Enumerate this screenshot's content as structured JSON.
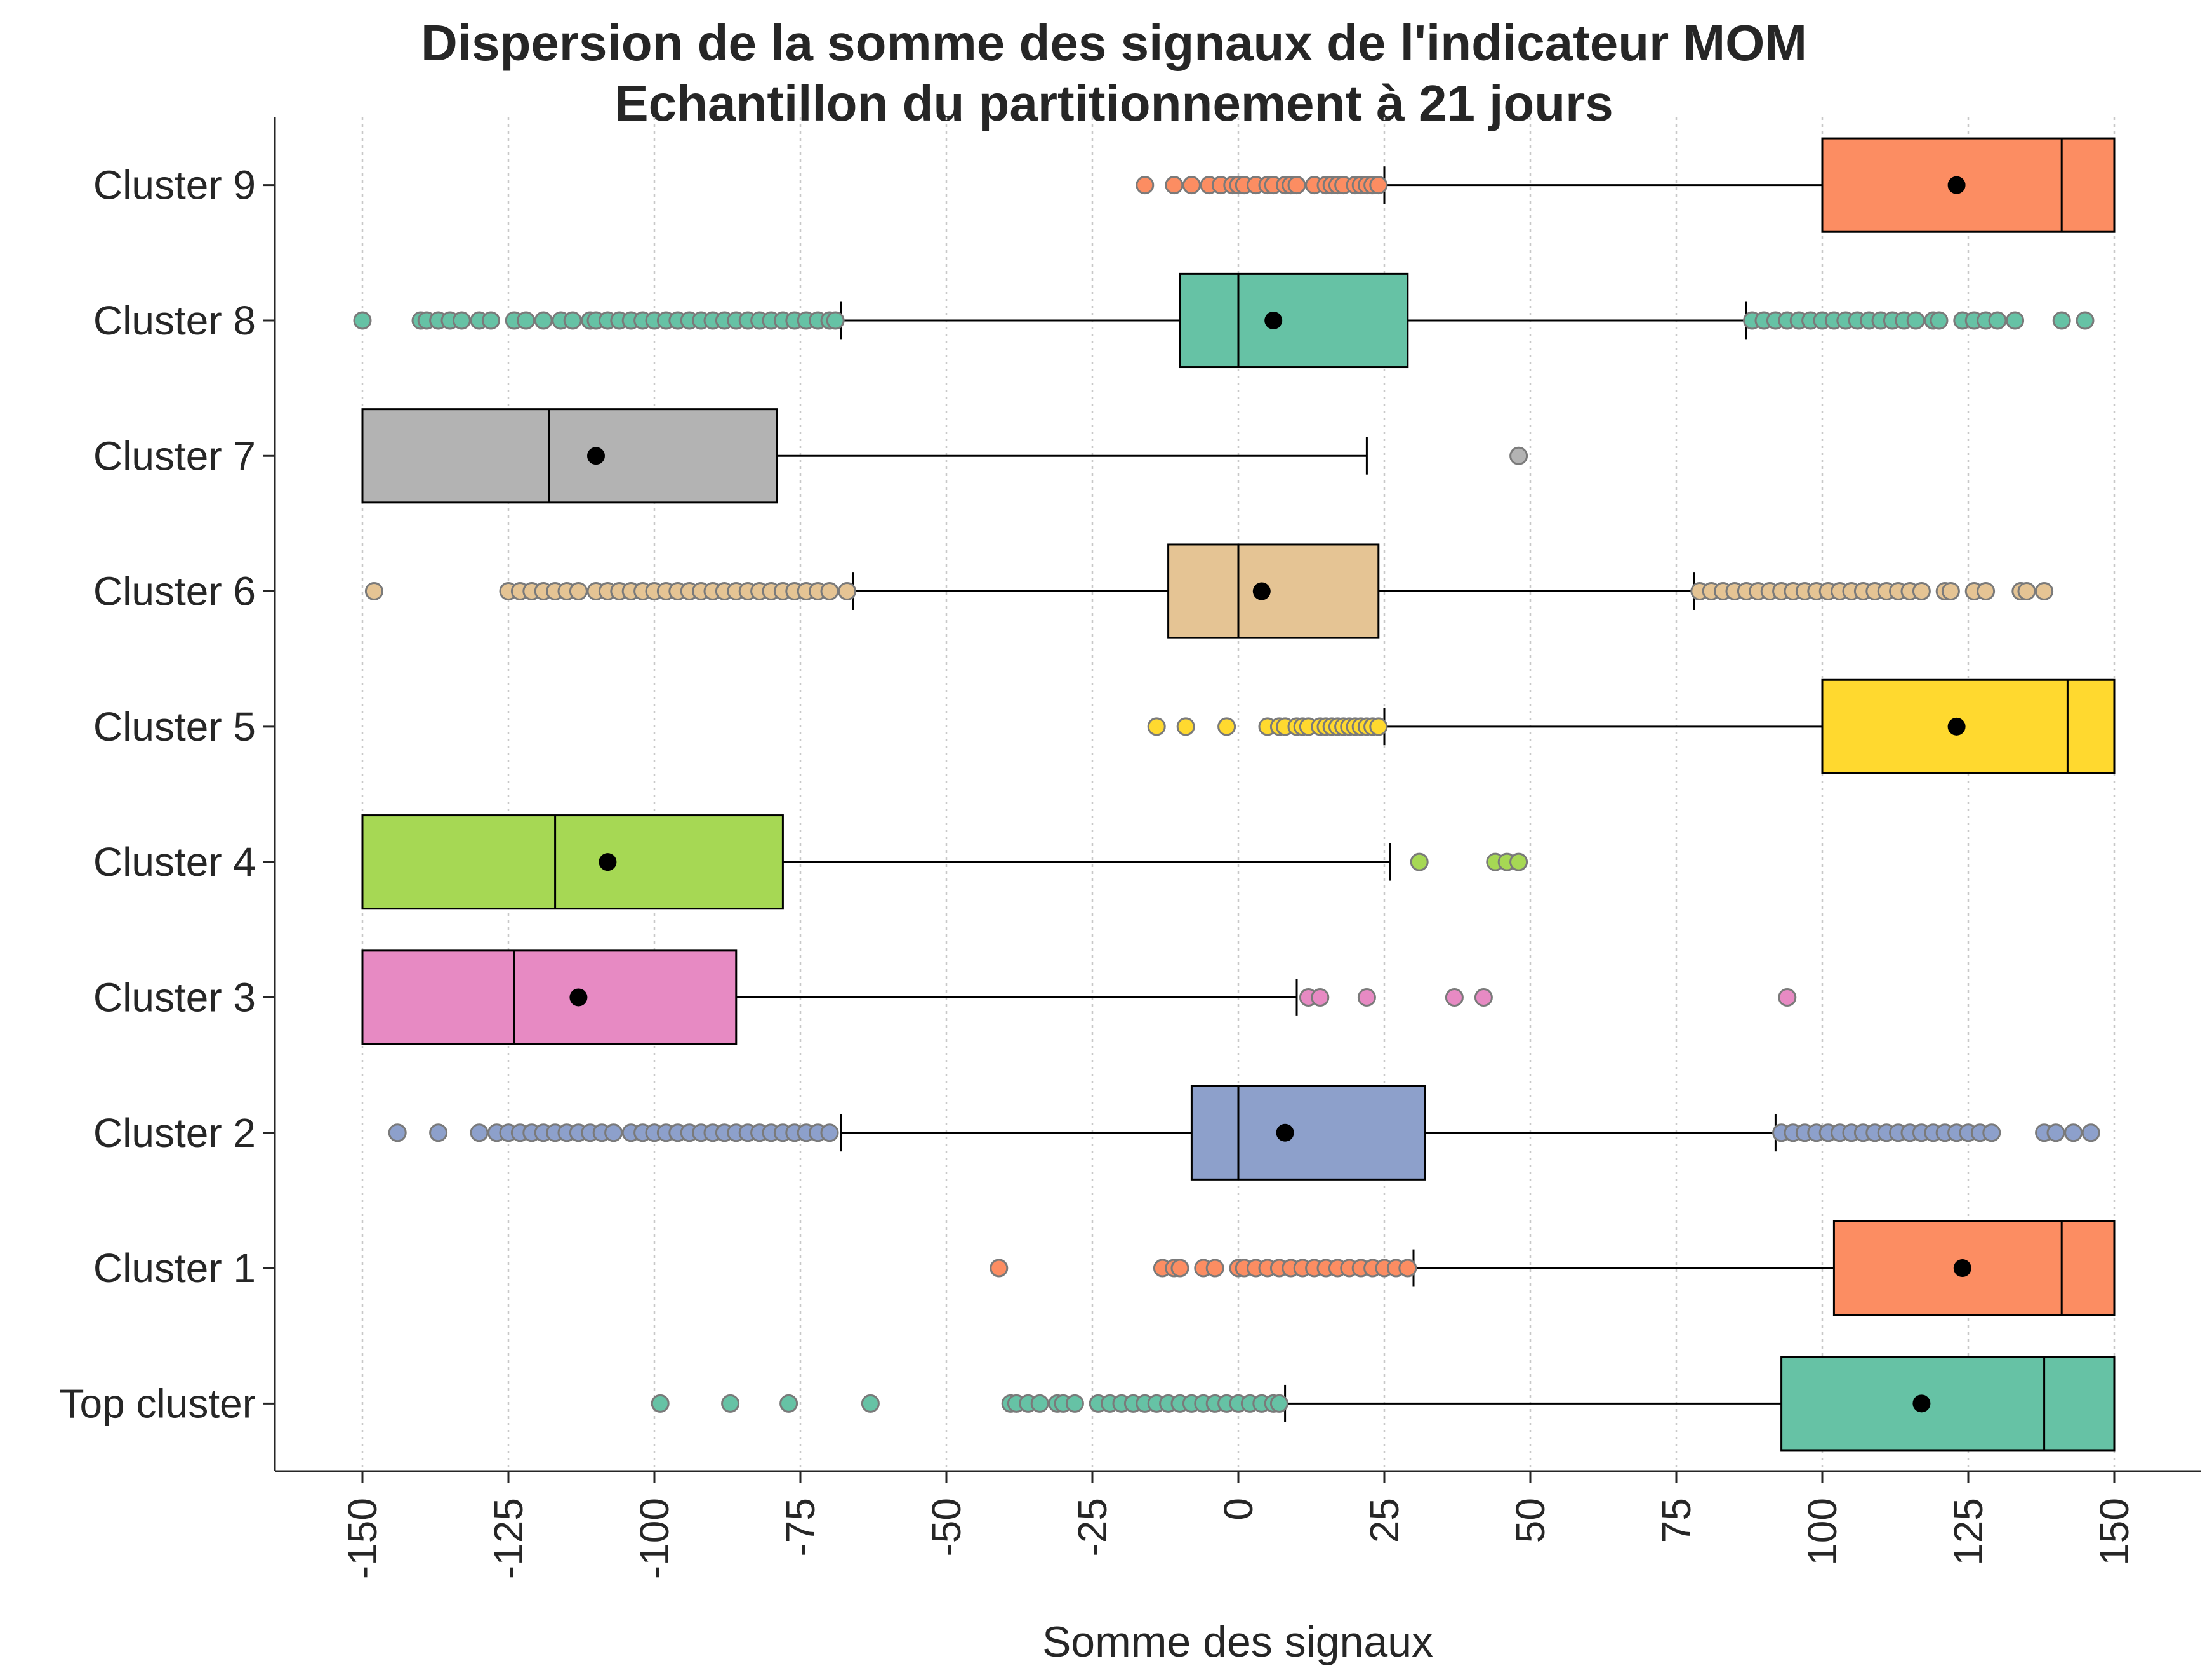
{
  "chart_data": {
    "type": "boxplot",
    "title": "Dispersion de la somme des signaux de l'indicateur MOM",
    "subtitle": "Echantillon du partitionnement à 21 jours",
    "xlabel": "Somme des signaux",
    "ylabel": "",
    "xlim": [
      -165,
      165
    ],
    "x_ticks": [
      -150,
      -125,
      -100,
      -75,
      -50,
      -25,
      0,
      25,
      50,
      75,
      100,
      125,
      150
    ],
    "x_tick_labels": [
      "-150",
      "-125",
      "-100",
      "-75",
      "-50",
      "-25",
      "0",
      "25",
      "50",
      "75",
      "100",
      "125",
      "150"
    ],
    "grid": "vertical dotted",
    "categories": [
      "Cluster 9",
      "Cluster 8",
      "Cluster 7",
      "Cluster 6",
      "Cluster 5",
      "Cluster 4",
      "Cluster 3",
      "Cluster 2",
      "Cluster 1",
      "Top cluster"
    ],
    "series": [
      {
        "label": "Cluster 9",
        "color": "#fc8d62",
        "whisker_low": 25,
        "q1": 100,
        "median": 141,
        "q3": 150,
        "whisker_high": 150,
        "mean": 123,
        "outliers": [
          -16,
          -11,
          -8,
          -5,
          -3,
          -1,
          0,
          1,
          3,
          5,
          6,
          8,
          9,
          10,
          13,
          15,
          16,
          17,
          18,
          20,
          21,
          22,
          23,
          24
        ]
      },
      {
        "label": "Cluster 8",
        "color": "#66c2a5",
        "whisker_low": -68,
        "q1": -10,
        "median": 0,
        "q3": 29,
        "whisker_high": 87,
        "mean": 6,
        "outliers": [
          -150,
          -140,
          -139,
          -137,
          -135,
          -133,
          -130,
          -128,
          -124,
          -122,
          -119,
          -116,
          -114,
          -111,
          -110,
          -108,
          -106,
          -104,
          -102,
          -100,
          -98,
          -96,
          -94,
          -92,
          -90,
          -88,
          -86,
          -84,
          -82,
          -80,
          -78,
          -76,
          -74,
          -72,
          -70,
          -69,
          88,
          90,
          92,
          94,
          96,
          98,
          100,
          102,
          104,
          106,
          108,
          110,
          112,
          114,
          116,
          119,
          120,
          124,
          126,
          128,
          130,
          133,
          141,
          145
        ]
      },
      {
        "label": "Cluster 7",
        "color": "#b3b3b3",
        "whisker_low": -150,
        "q1": -150,
        "median": -118,
        "q3": -79,
        "whisker_high": 22,
        "mean": -110,
        "outliers": [
          48
        ]
      },
      {
        "label": "Cluster 6",
        "color": "#e5c494",
        "whisker_low": -66,
        "q1": -12,
        "median": 0,
        "q3": 24,
        "whisker_high": 78,
        "mean": 4,
        "outliers": [
          -148,
          -125,
          -123,
          -121,
          -119,
          -117,
          -115,
          -113,
          -110,
          -108,
          -106,
          -104,
          -102,
          -100,
          -98,
          -96,
          -94,
          -92,
          -90,
          -88,
          -86,
          -84,
          -82,
          -80,
          -78,
          -76,
          -74,
          -72,
          -70,
          -67,
          79,
          81,
          83,
          85,
          87,
          89,
          91,
          93,
          95,
          97,
          99,
          101,
          103,
          105,
          107,
          109,
          111,
          113,
          115,
          117,
          121,
          122,
          126,
          128,
          134,
          135,
          138
        ]
      },
      {
        "label": "Cluster 5",
        "color": "#ffd92f",
        "whisker_low": 25,
        "q1": 100,
        "median": 142,
        "q3": 150,
        "whisker_high": 150,
        "mean": 123,
        "outliers": [
          -14,
          -9,
          -2,
          5,
          7,
          8,
          10,
          11,
          12,
          14,
          15,
          16,
          17,
          18,
          19,
          20,
          21,
          22,
          23,
          24
        ]
      },
      {
        "label": "Cluster 4",
        "color": "#a6d854",
        "whisker_low": -150,
        "q1": -150,
        "median": -117,
        "q3": -78,
        "whisker_high": 26,
        "mean": -108,
        "outliers": [
          31,
          44,
          46,
          48
        ]
      },
      {
        "label": "Cluster 3",
        "color": "#e78ac3",
        "whisker_low": -150,
        "q1": -150,
        "median": -124,
        "q3": -86,
        "whisker_high": 10,
        "mean": -113,
        "outliers": [
          12,
          14,
          22,
          37,
          42,
          94
        ]
      },
      {
        "label": "Cluster 2",
        "color": "#8da0cb",
        "whisker_low": -68,
        "q1": -8,
        "median": 0,
        "q3": 32,
        "whisker_high": 92,
        "mean": 8,
        "outliers": [
          -144,
          -137,
          -130,
          -127,
          -125,
          -123,
          -121,
          -119,
          -117,
          -115,
          -113,
          -111,
          -109,
          -107,
          -104,
          -102,
          -100,
          -98,
          -96,
          -94,
          -92,
          -90,
          -88,
          -86,
          -84,
          -82,
          -80,
          -78,
          -76,
          -74,
          -72,
          -70,
          93,
          95,
          97,
          99,
          101,
          103,
          105,
          107,
          109,
          111,
          113,
          115,
          117,
          119,
          121,
          123,
          125,
          127,
          129,
          138,
          140,
          143,
          146
        ]
      },
      {
        "label": "Cluster 1",
        "color": "#fc8d62",
        "whisker_low": 30,
        "q1": 102,
        "median": 141,
        "q3": 150,
        "whisker_high": 150,
        "mean": 124,
        "outliers": [
          -41,
          -13,
          -11,
          -10,
          -6,
          -4,
          0,
          1,
          3,
          5,
          7,
          9,
          11,
          13,
          15,
          17,
          19,
          21,
          23,
          25,
          27,
          29
        ]
      },
      {
        "label": "Top cluster",
        "color": "#66c2a5",
        "whisker_low": 8,
        "q1": 93,
        "median": 138,
        "q3": 150,
        "whisker_high": 150,
        "mean": 117,
        "outliers": [
          -99,
          -87,
          -77,
          -63,
          -39,
          -38,
          -36,
          -34,
          -31,
          -30,
          -28,
          -24,
          -22,
          -20,
          -18,
          -16,
          -14,
          -12,
          -10,
          -8,
          -6,
          -4,
          -2,
          0,
          2,
          4,
          6,
          7
        ]
      }
    ],
    "mean_marker_color": "#000000"
  }
}
